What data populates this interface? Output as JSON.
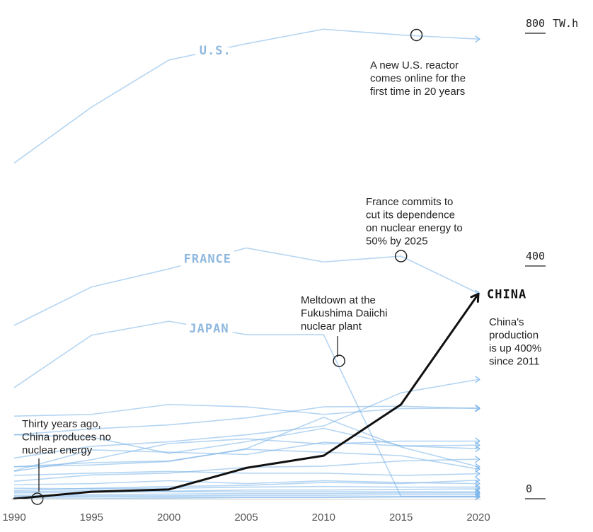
{
  "chart_data": {
    "type": "line",
    "x": [
      1990,
      1995,
      2000,
      2005,
      2010,
      2015,
      2020
    ],
    "ylim": [
      0,
      800
    ],
    "y_unit": "TW.h",
    "y_ticks": [
      {
        "value": 800,
        "label": "800"
      },
      {
        "value": 400,
        "label": "400"
      },
      {
        "value": 0,
        "label": "0"
      }
    ],
    "x_tick_labels": [
      "1990",
      "1995",
      "2000",
      "2005",
      "2010",
      "2015",
      "2020"
    ],
    "grid": "vertical",
    "highlight_color": "#111111",
    "label_color": "#8fb8de",
    "series_color": "#79b3e8",
    "series": [
      {
        "name": "U.S.",
        "labeled": true,
        "label_at": 2003,
        "values": [
          577,
          673,
          754,
          782,
          807,
          797,
          790
        ]
      },
      {
        "name": "FRANCE",
        "labeled": true,
        "label_at": 2002.5,
        "values": [
          298,
          364,
          395,
          431,
          407,
          417,
          353
        ]
      },
      {
        "name": "JAPAN",
        "labeled": true,
        "label_at": 2002.6,
        "values": [
          191,
          281,
          305,
          282,
          282,
          4,
          4
        ]
      },
      {
        "name": "CHINA",
        "labeled": true,
        "highlight": true,
        "values": [
          0,
          12,
          16,
          53,
          74,
          162,
          352
        ]
      },
      {
        "values": [
          70,
          90,
          98,
          110,
          125,
          182,
          205
        ]
      },
      {
        "values": [
          142,
          145,
          162,
          158,
          145,
          155,
          156
        ]
      },
      {
        "values": [
          110,
          120,
          127,
          139,
          158,
          159,
          155
        ]
      },
      {
        "values": [
          110,
          106,
          78,
          98,
          121,
          91,
          92
        ]
      },
      {
        "values": [
          47,
          67,
          95,
          103,
          94,
          99,
          99
        ]
      },
      {
        "values": [
          48,
          84,
          80,
          76,
          97,
          91,
          86
        ]
      },
      {
        "values": [
          55,
          62,
          65,
          85,
          80,
          74,
          51
        ]
      },
      {
        "values": [
          55,
          58,
          64,
          86,
          140,
          89,
          55
        ]
      },
      {
        "values": [
          30,
          41,
          44,
          54,
          56,
          65,
          68
        ]
      },
      {
        "values": [
          40,
          44,
          47,
          44,
          44,
          40,
          43
        ]
      },
      {
        "values": [
          14,
          18,
          21,
          23,
          28,
          26,
          32
        ]
      },
      {
        "values": [
          24,
          26,
          31,
          26,
          31,
          28,
          26
        ]
      },
      {
        "values": [
          18,
          17,
          18,
          20,
          21,
          20,
          20
        ]
      },
      {
        "values": [
          12,
          14,
          13,
          15,
          15,
          16,
          17
        ]
      },
      {
        "values": [
          10,
          11,
          12,
          12,
          12,
          12,
          12
        ]
      },
      {
        "values": [
          6,
          7,
          8,
          9,
          9,
          10,
          10
        ]
      },
      {
        "values": [
          4,
          5,
          5,
          6,
          6,
          7,
          7
        ]
      },
      {
        "values": [
          2,
          3,
          3,
          3,
          3,
          4,
          4
        ]
      },
      {
        "values": [
          0,
          0,
          1,
          2,
          2,
          3,
          3
        ]
      }
    ],
    "annotations": [
      {
        "id": "us-reactor",
        "x": 2016,
        "y": 797,
        "lines": [
          "A new U.S. reactor",
          "comes online for the",
          "first time in 20 years"
        ]
      },
      {
        "id": "france-commits",
        "x": 2015,
        "y": 417,
        "lines": [
          "France commits to",
          "cut its dependence",
          "on nuclear energy to",
          "50% by 2025"
        ]
      },
      {
        "id": "fukushima",
        "x": 2011,
        "y": 237,
        "lines": [
          "Meltdown at the",
          "Fukushima Daiichi",
          "nuclear plant"
        ]
      },
      {
        "id": "china-start",
        "x": 1991.5,
        "y": 0,
        "lines": [
          "Thirty years ago,",
          "China produces no",
          "nuclear energy"
        ]
      },
      {
        "id": "china-growth",
        "x": 2020,
        "y": 352,
        "lines": [
          "China's",
          "production",
          "is up 400%",
          "since 2011"
        ]
      }
    ]
  }
}
